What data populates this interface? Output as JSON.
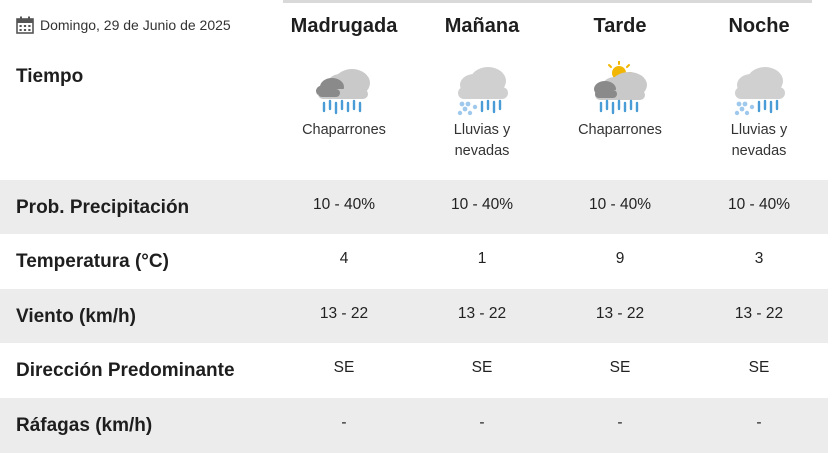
{
  "header": {
    "date": "Domingo, 29 de Junio de 2025",
    "calendar_icon": "calendar-icon"
  },
  "columns": [
    {
      "name": "Madrugada",
      "icon": "showers-icon",
      "description": "Chaparrones"
    },
    {
      "name": "Mañana",
      "icon": "rain-snow-icon",
      "description": "Lluvias y nevadas"
    },
    {
      "name": "Tarde",
      "icon": "sun-showers-icon",
      "description": "Chaparrones"
    },
    {
      "name": "Noche",
      "icon": "rain-snow-icon",
      "description": "Lluvias y nevadas"
    }
  ],
  "rows": {
    "tiempo": {
      "label": "Tiempo"
    },
    "precip": {
      "label": "Prob. Precipitación",
      "values": [
        "10 - 40%",
        "10 - 40%",
        "10 - 40%",
        "10 - 40%"
      ]
    },
    "temp": {
      "label": "Temperatura (°C)",
      "values": [
        "4",
        "1",
        "9",
        "3"
      ]
    },
    "viento": {
      "label": "Viento (km/h)",
      "values": [
        "13 - 22",
        "13 - 22",
        "13 - 22",
        "13 - 22"
      ]
    },
    "direccion": {
      "label": "Dirección Predominante",
      "values": [
        "SE",
        "SE",
        "SE",
        "SE"
      ]
    },
    "rafagas": {
      "label": "Ráfagas (km/h)",
      "values": [
        "-",
        "-",
        "-",
        "-"
      ]
    }
  },
  "colors": {
    "band_gray": "#ececec",
    "cloud_light": "#c9c9c9",
    "cloud_dark": "#8a8a8a",
    "rain": "#4a9cd6",
    "snow": "#9fc9ec",
    "sun": "#f2b705"
  }
}
